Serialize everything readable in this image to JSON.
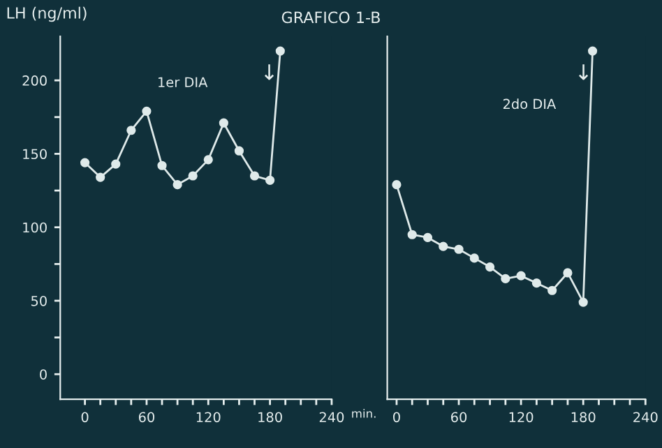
{
  "chart_data": [
    {
      "type": "line",
      "title": "GRAFICO 1-B",
      "ylabel": "LH (ng/ml)",
      "xlabel": "min.",
      "marker": "circle",
      "line_style": "solid",
      "annotations": [
        "1er DIA",
        "↓"
      ],
      "xlim": [
        -24,
        240
      ],
      "ylim": [
        -17,
        230
      ],
      "xticks": [
        0,
        {
          "value": 15,
          "label": null
        },
        {
          "value": 30,
          "label": null
        },
        {
          "value": 45,
          "label": null
        },
        60,
        {
          "value": 75,
          "label": null
        },
        {
          "value": 90,
          "label": null
        },
        {
          "value": 105,
          "label": null
        },
        120,
        {
          "value": 135,
          "label": null
        },
        {
          "value": 150,
          "label": null
        },
        {
          "value": 165,
          "label": null
        },
        180,
        {
          "value": 195,
          "label": null
        },
        {
          "value": 210,
          "label": null
        },
        {
          "value": 225,
          "label": null
        },
        240
      ],
      "yticks": [
        0,
        {
          "value": 25,
          "label": null
        },
        50,
        {
          "value": 75,
          "label": null
        },
        100,
        {
          "value": 125,
          "label": null
        },
        150,
        {
          "value": 175,
          "label": null
        },
        200
      ],
      "series": [
        {
          "color": "#dfeaea",
          "x": [
            0,
            15,
            30,
            45,
            60,
            75,
            90,
            105,
            120,
            135,
            150,
            165,
            180,
            190
          ],
          "values": [
            144,
            134,
            143,
            166,
            179,
            142,
            129,
            135,
            146,
            171,
            152,
            135,
            132,
            220
          ]
        }
      ]
    },
    {
      "type": "line",
      "marker": "circle",
      "line_style": "solid",
      "tick_labels": "x",
      "annotations": [
        "2do DIA",
        "↓"
      ],
      "xlim": [
        -9,
        240
      ],
      "ylim": [
        -17,
        230
      ],
      "xticks": [
        0,
        {
          "value": 15,
          "label": null
        },
        {
          "value": 30,
          "label": null
        },
        {
          "value": 45,
          "label": null
        },
        60,
        {
          "value": 75,
          "label": null
        },
        {
          "value": 90,
          "label": null
        },
        {
          "value": 105,
          "label": null
        },
        120,
        {
          "value": 135,
          "label": null
        },
        {
          "value": 150,
          "label": null
        },
        {
          "value": 165,
          "label": null
        },
        180,
        {
          "value": 195,
          "label": null
        },
        {
          "value": 210,
          "label": null
        },
        {
          "value": 225,
          "label": null
        },
        240
      ],
      "series": [
        {
          "color": "#dfeaea",
          "x": [
            0,
            15,
            30,
            45,
            60,
            75,
            90,
            105,
            120,
            135,
            150,
            165,
            180,
            189
          ],
          "values": [
            129,
            95,
            93,
            87,
            85,
            79,
            73,
            65,
            67,
            62,
            57,
            69,
            49,
            220
          ]
        }
      ]
    }
  ]
}
